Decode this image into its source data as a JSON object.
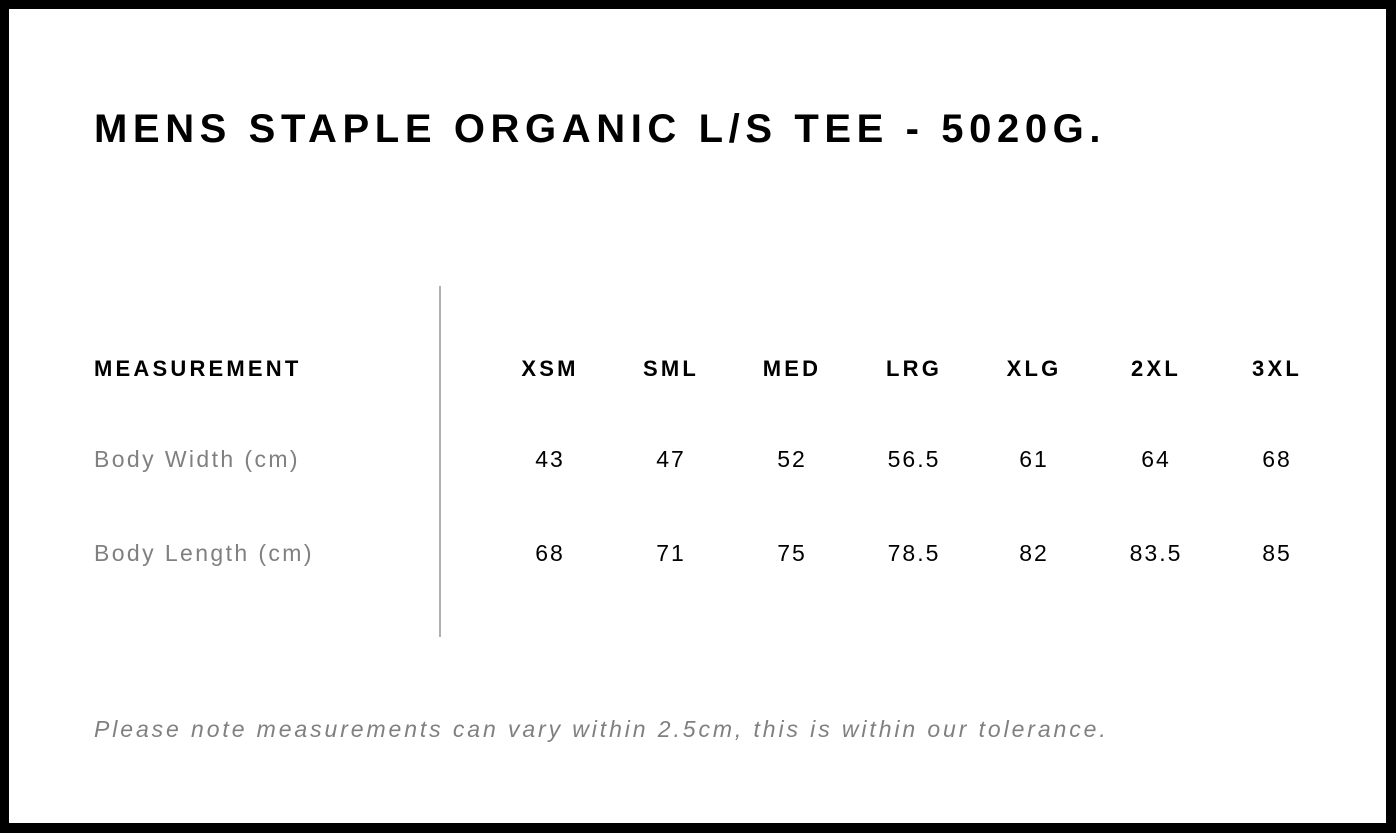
{
  "title": "MENS STAPLE ORGANIC L/S TEE - 5020G.",
  "table": {
    "header_label": "MEASUREMENT",
    "sizes": [
      "XSM",
      "SML",
      "MED",
      "LRG",
      "XLG",
      "2XL",
      "3XL"
    ],
    "rows": [
      {
        "label": "Body Width (cm)",
        "values": [
          "43",
          "47",
          "52",
          "56.5",
          "61",
          "64",
          "68"
        ]
      },
      {
        "label": "Body Length (cm)",
        "values": [
          "68",
          "71",
          "75",
          "78.5",
          "82",
          "83.5",
          "85"
        ]
      }
    ]
  },
  "note": "Please note measurements can vary within 2.5cm, this is within our tolerance.",
  "colors": {
    "border": "#000000",
    "label_gray": "#808080",
    "divider": "#b0b0b0"
  }
}
